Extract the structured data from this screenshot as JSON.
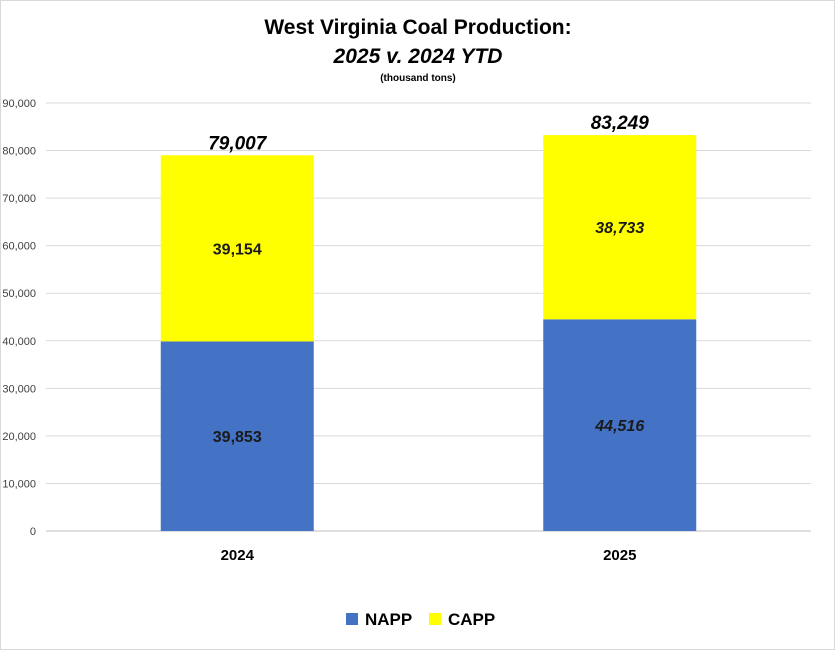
{
  "chart_data": {
    "type": "bar",
    "stacked": true,
    "title": [
      "West Virginia Coal Production:",
      "2025 v. 2024 YTD"
    ],
    "subtitle": "(thousand tons)",
    "categories": [
      "2024",
      "2025"
    ],
    "series": [
      {
        "name": "NAPP",
        "color": "#4472C4",
        "values": [
          39853,
          44516
        ],
        "labels": [
          "39,853",
          "44,516"
        ],
        "label_italic": [
          false,
          true
        ]
      },
      {
        "name": "CAPP",
        "color": "#FFFF00",
        "values": [
          39154,
          38733
        ],
        "labels": [
          "39,154",
          "38,733"
        ],
        "label_italic": [
          false,
          true
        ]
      }
    ],
    "totals": [
      79007,
      83249
    ],
    "total_labels": [
      "79,007",
      "83,249"
    ],
    "ylim": [
      0,
      90000
    ],
    "yticks": [
      0,
      10000,
      20000,
      30000,
      40000,
      50000,
      60000,
      70000,
      80000,
      90000
    ],
    "ytick_labels": [
      "0",
      "10,000",
      "20,000",
      "30,000",
      "40,000",
      "50,000",
      "60,000",
      "70,000",
      "80,000",
      "90,000"
    ],
    "xlabel": "",
    "ylabel": "",
    "grid": true,
    "legend": "bottom-center"
  }
}
